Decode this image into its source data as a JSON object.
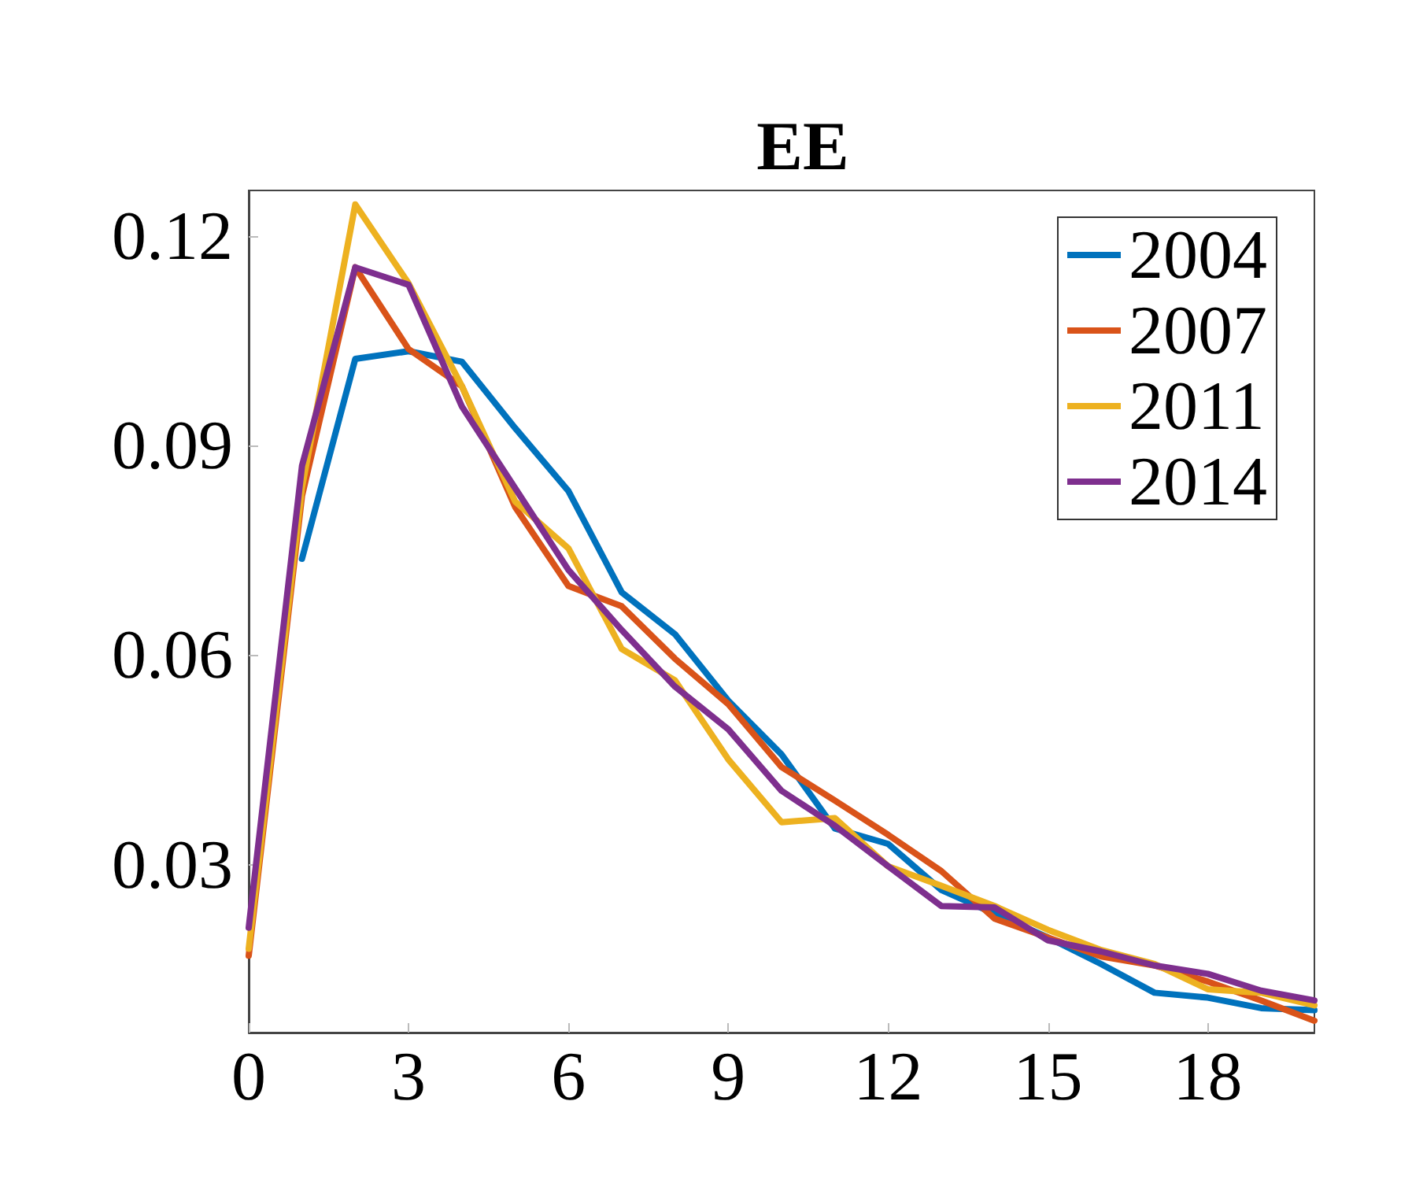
{
  "chart_data": {
    "type": "line",
    "title": "EE",
    "x": [
      0,
      1,
      2,
      3,
      4,
      5,
      6,
      7,
      8,
      9,
      10,
      11,
      12,
      13,
      14,
      15,
      16,
      17,
      18,
      19,
      20
    ],
    "series": [
      {
        "name": "2004",
        "color": "#0072bd",
        "values": [
          null,
          0.0738,
          0.1024,
          0.1035,
          0.102,
          0.0925,
          0.0835,
          0.069,
          0.063,
          0.0535,
          0.0458,
          0.0352,
          0.033,
          0.0264,
          0.023,
          0.0196,
          0.0158,
          0.0117,
          0.011,
          0.0095,
          0.0092
        ]
      },
      {
        "name": "2007",
        "color": "#d95319",
        "values": [
          0.017,
          0.0828,
          0.1155,
          0.1038,
          0.0985,
          0.0812,
          0.0699,
          0.067,
          0.0595,
          0.053,
          0.044,
          0.0392,
          0.0343,
          0.0291,
          0.0223,
          0.0196,
          0.0169,
          0.0156,
          0.0133,
          0.0106,
          0.0077
        ]
      },
      {
        "name": "2011",
        "color": "#edb120",
        "values": [
          0.018,
          0.084,
          0.1245,
          0.1132,
          0.0985,
          0.082,
          0.0753,
          0.0609,
          0.0564,
          0.0451,
          0.0361,
          0.0367,
          0.0298,
          0.027,
          0.0241,
          0.0207,
          0.0178,
          0.0158,
          0.0122,
          0.0117,
          0.0099
        ]
      },
      {
        "name": "2014",
        "color": "#7e2f8e",
        "values": [
          0.021,
          0.0871,
          0.1155,
          0.113,
          0.0956,
          0.0839,
          0.0722,
          0.0636,
          0.0555,
          0.0494,
          0.0406,
          0.0356,
          0.0298,
          0.0241,
          0.0239,
          0.0192,
          0.0176,
          0.0156,
          0.0144,
          0.012,
          0.0106
        ]
      }
    ],
    "xlim": [
      0,
      20
    ],
    "xticks": [
      0,
      3,
      6,
      9,
      12,
      15,
      18
    ],
    "ylim": [
      0.006,
      0.1265
    ],
    "yticks": [
      0.03,
      0.06,
      0.09,
      0.12
    ],
    "grid": false,
    "legend": "top right",
    "marker": "none",
    "line_style": "solid"
  }
}
